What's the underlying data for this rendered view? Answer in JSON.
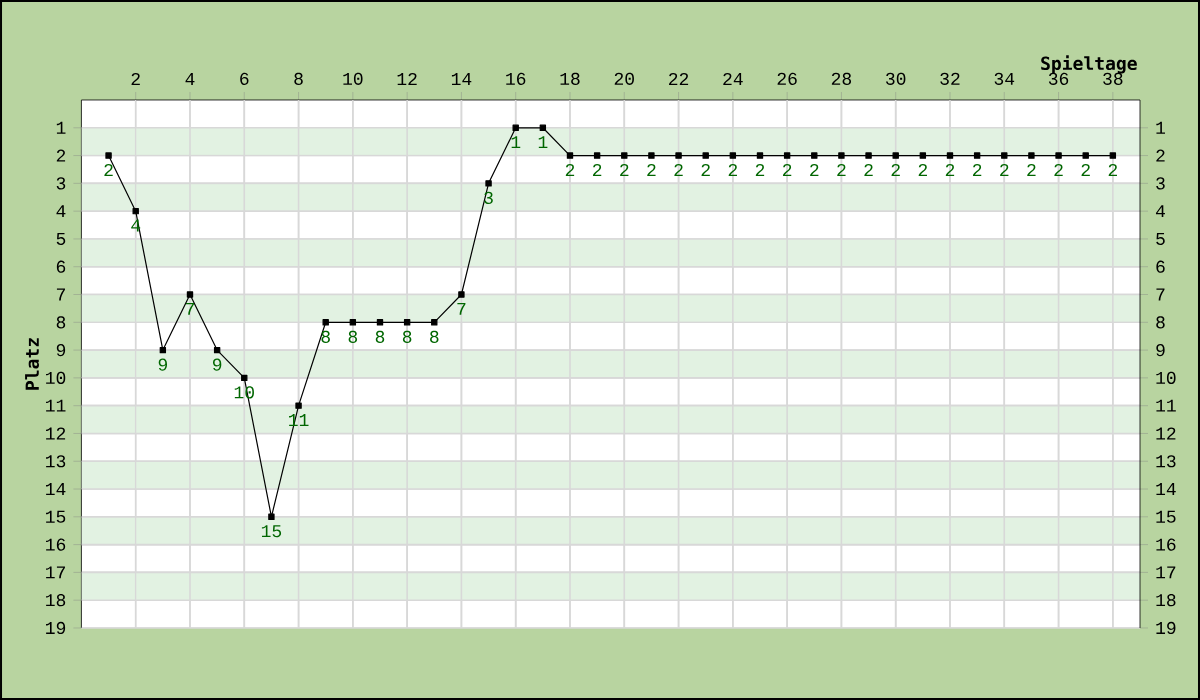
{
  "chart_data": {
    "type": "line",
    "xlabel": "Spieltage",
    "ylabel": "Platz",
    "x": [
      1,
      2,
      3,
      4,
      5,
      6,
      7,
      8,
      9,
      10,
      11,
      12,
      13,
      14,
      15,
      16,
      17,
      18,
      19,
      20,
      21,
      22,
      23,
      24,
      25,
      26,
      27,
      28,
      29,
      30,
      31,
      32,
      33,
      34,
      35,
      36,
      37,
      38
    ],
    "series": [
      {
        "color": "#000000",
        "values": [
          2,
          4,
          9,
          7,
          9,
          10,
          15,
          11,
          8,
          8,
          8,
          8,
          8,
          7,
          3,
          1,
          1,
          2,
          2,
          2,
          2,
          2,
          2,
          2,
          2,
          2,
          2,
          2,
          2,
          2,
          2,
          2,
          2,
          2,
          2,
          2,
          2,
          2
        ]
      }
    ],
    "xlim": [
      0,
      39
    ],
    "ylim": [
      19,
      0
    ],
    "y2lim": [
      19,
      0
    ],
    "xticks": [
      2,
      4,
      6,
      8,
      10,
      12,
      14,
      16,
      18,
      20,
      22,
      24,
      26,
      28,
      30,
      32,
      34,
      36,
      38
    ],
    "yticks": [
      1,
      2,
      3,
      4,
      5,
      6,
      7,
      8,
      9,
      10,
      11,
      12,
      13,
      14,
      15,
      16,
      17,
      18,
      19
    ],
    "y2ticks": [
      1,
      2,
      3,
      4,
      5,
      6,
      7,
      8,
      9,
      10,
      11,
      12,
      13,
      14,
      15,
      16,
      17,
      18,
      19
    ],
    "grid": true,
    "marker": "square",
    "line_style": "solid",
    "data_labels": true,
    "bands": [
      {
        "axis": "y",
        "from": 1,
        "to": 2,
        "color": "#e2f2e2"
      },
      {
        "axis": "y",
        "from": 3,
        "to": 4,
        "color": "#e2f2e2"
      },
      {
        "axis": "y",
        "from": 5,
        "to": 6,
        "color": "#e2f2e2"
      },
      {
        "axis": "y",
        "from": 7,
        "to": 8,
        "color": "#e2f2e2"
      },
      {
        "axis": "y",
        "from": 9,
        "to": 10,
        "color": "#e2f2e2"
      },
      {
        "axis": "y",
        "from": 11,
        "to": 12,
        "color": "#e2f2e2"
      },
      {
        "axis": "y",
        "from": 13,
        "to": 14,
        "color": "#e2f2e2"
      },
      {
        "axis": "y",
        "from": 15,
        "to": 16,
        "color": "#e2f2e2"
      },
      {
        "axis": "y",
        "from": 17,
        "to": 18,
        "color": "#e2f2e2"
      }
    ]
  }
}
